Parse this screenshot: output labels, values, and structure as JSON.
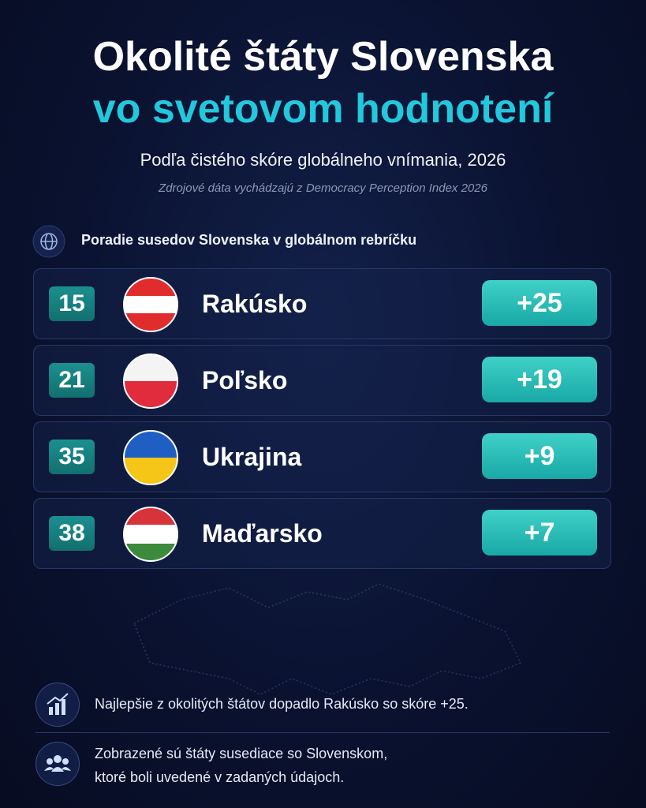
{
  "header": {
    "title_lines": [
      "Okolité štáty Slovenska",
      "vo svetovom hodnotení"
    ],
    "subtitle": "Podľa čistého skóre globálneho vnímania, 2026",
    "source": "Zdrojové dáta vychádzajú z Democracy Perception Index 2026"
  },
  "ranking": {
    "heading": "Poradie susedov Slovenska v globálnom rebríčku",
    "rows": [
      {
        "rank": 15,
        "country": "Rakúsko",
        "score": "+25"
      },
      {
        "rank": 21,
        "country": "Poľsko",
        "score": "+19"
      },
      {
        "rank": 35,
        "country": "Ukrajina",
        "score": "+9"
      },
      {
        "rank": 38,
        "country": "Maďarsko",
        "score": "+7"
      }
    ]
  },
  "notes": [
    {
      "lines": [
        "Najlepšie z okolitých štátov dopadlo Rakúsko so skóre +25."
      ]
    },
    {
      "lines": [
        "Zobrazené sú štáty susediace so Slovenskom,",
        "ktoré boli uvedené v zadaných údajoch."
      ]
    }
  ]
}
